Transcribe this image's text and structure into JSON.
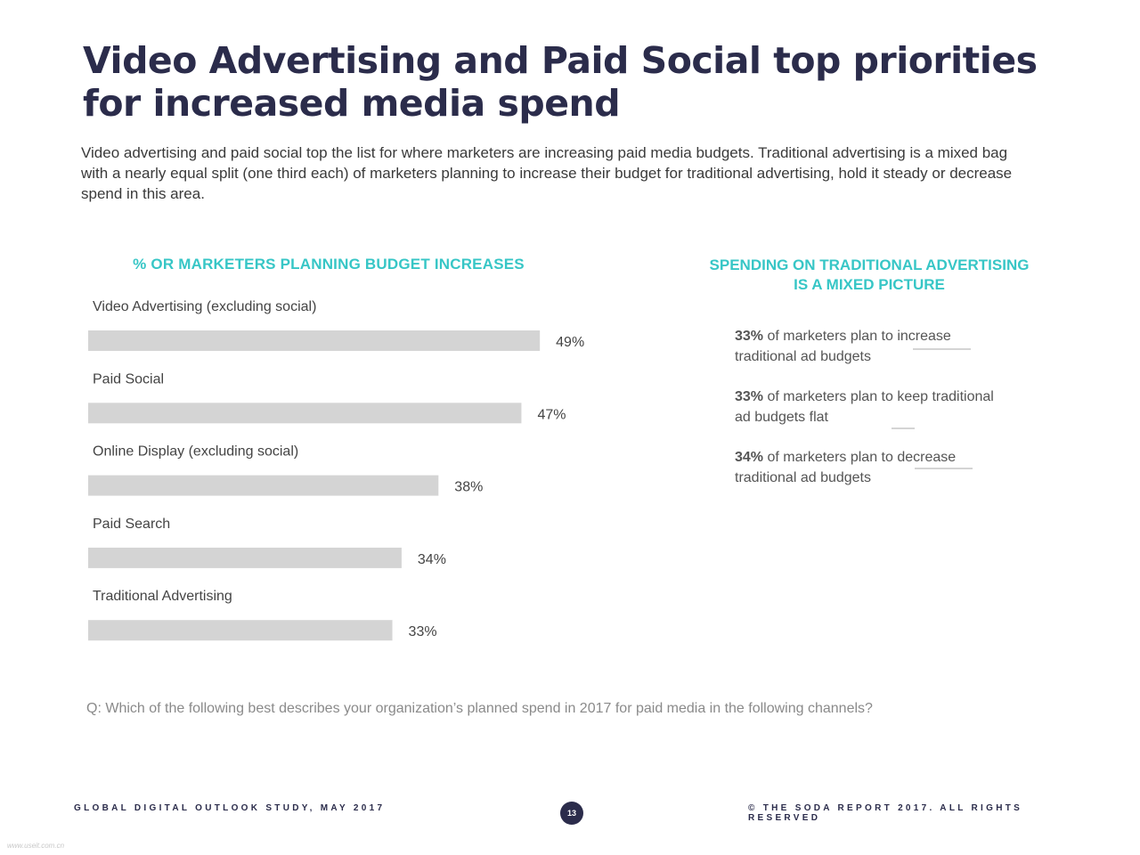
{
  "title": {
    "line1": "Video Advertising and Paid Social top priorities",
    "line2": "for increased media spend"
  },
  "intro": "Video advertising and paid social top the list for where marketers are increasing paid media budgets. Traditional advertising is a mixed bag with a nearly equal split (one third each) of marketers planning to increase their budget for traditional advertising, hold it steady or decrease spend in this area.",
  "chart_data": {
    "type": "bar",
    "orientation": "horizontal",
    "title": "% OR MARKETERS PLANNING BUDGET INCREASES",
    "categories": [
      "Video Advertising (excluding social)",
      "Paid Social",
      "Online Display (excluding social)",
      "Paid Search",
      "Traditional Advertising"
    ],
    "values": [
      49,
      47,
      38,
      34,
      33
    ],
    "value_labels": [
      "49%",
      "47%",
      "38%",
      "34%",
      "33%"
    ],
    "bar_color": "#d4d4d4",
    "xlim": [
      0,
      100
    ],
    "grid": false
  },
  "traditional": {
    "title_line1": "SPENDING ON TRADITIONAL ADVERTISING",
    "title_line2": "IS A MIXED PICTURE",
    "stats": [
      {
        "pct": "33%",
        "text": " of marketers plan to increase traditional ad budgets"
      },
      {
        "pct": "33%",
        "text": " of marketers plan to keep traditional ad budgets flat"
      },
      {
        "pct": "34%",
        "text": " of marketers plan to decrease traditional ad budgets"
      }
    ]
  },
  "question": "Q:  Which of the following best describes your organization’s planned spend in 2017 for paid media in the following channels?",
  "footer": {
    "left": "GLOBAL DIGITAL OUTLOOK STUDY, MAY 2017",
    "page": "13",
    "right": "© THE SODA REPORT 2017. ALL RIGHTS RESERVED"
  },
  "watermark": "www.useit.com.cn",
  "colors": {
    "navy": "#2b2c4b",
    "teal": "#37c6c6",
    "bar": "#d4d4d4",
    "text": "#3a3a3a"
  }
}
